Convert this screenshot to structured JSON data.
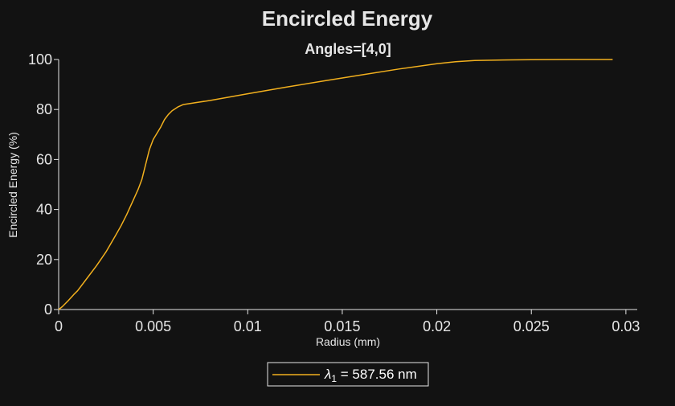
{
  "chart_data": {
    "type": "line",
    "title": "Encircled Energy",
    "subtitle": "Angles=[4,0]",
    "xlabel": "Radius (mm)",
    "ylabel": "Encircled Energy (%)",
    "xlim": [
      0,
      0.0306
    ],
    "ylim": [
      0,
      100
    ],
    "xticks": [
      0,
      0.005,
      0.01,
      0.015,
      0.02,
      0.025,
      0.03
    ],
    "xtick_labels": [
      "0",
      "0.005",
      "0.01",
      "0.015",
      "0.02",
      "0.025",
      "0.03"
    ],
    "yticks": [
      0,
      20,
      40,
      60,
      80,
      100
    ],
    "ytick_labels": [
      "0",
      "20",
      "40",
      "60",
      "80",
      "100"
    ],
    "grid": false,
    "legend_position": "bottom-center",
    "series": [
      {
        "legend_symbol": "λ",
        "legend_subscript": "1",
        "legend_rest": " = 587.56 nm",
        "color": "#f2b01e",
        "x": [
          0,
          0.0002,
          0.0005,
          0.0008,
          0.001,
          0.0015,
          0.002,
          0.0025,
          0.003,
          0.0033,
          0.0036,
          0.0039,
          0.0042,
          0.0044,
          0.0046,
          0.0048,
          0.005,
          0.0052,
          0.0054,
          0.0056,
          0.0058,
          0.006,
          0.0063,
          0.0066,
          0.008,
          0.01,
          0.012,
          0.014,
          0.016,
          0.018,
          0.02,
          0.021,
          0.022,
          0.0235,
          0.025,
          0.027,
          0.0293
        ],
        "y": [
          0,
          1.2,
          3.5,
          6,
          7.5,
          12.5,
          17.5,
          23,
          29.5,
          33.5,
          38,
          43,
          48,
          52,
          58,
          64,
          68,
          70.5,
          73,
          76,
          78,
          79.5,
          81,
          82,
          83.6,
          86.3,
          88.9,
          91.4,
          93.8,
          96.2,
          98.3,
          99.1,
          99.6,
          99.8,
          99.9,
          100,
          100
        ]
      }
    ]
  }
}
